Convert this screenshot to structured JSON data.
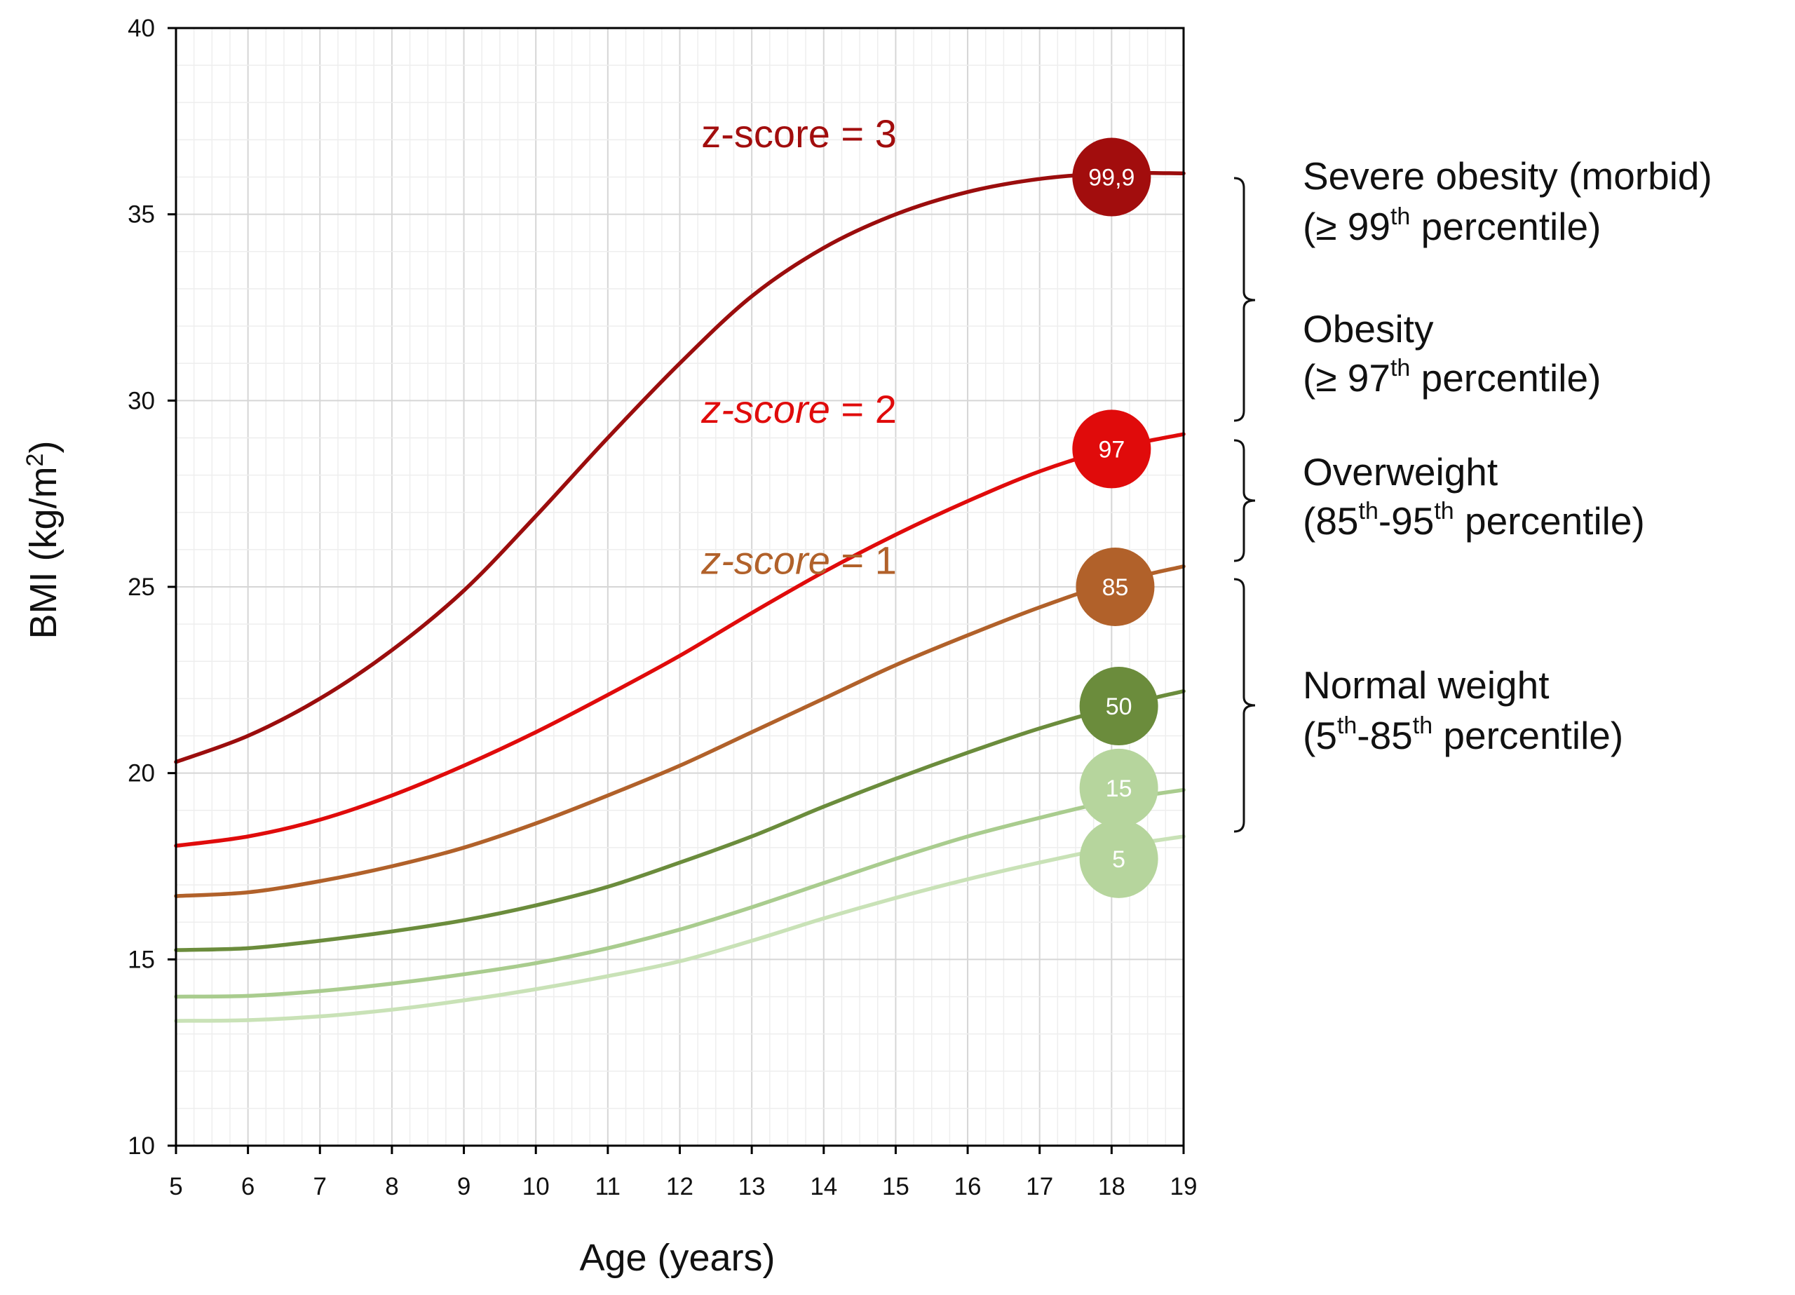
{
  "chart_data": {
    "type": "line",
    "xlabel": "Age (years)",
    "ylabel": "BMI (kg/m²)",
    "ylabel_parts": [
      "BMI (kg/m",
      "2",
      ")"
    ],
    "xlim": [
      5,
      19
    ],
    "ylim": [
      10,
      40
    ],
    "x_ticks": [
      "5",
      "6",
      "7",
      "8",
      "9",
      "10",
      "11",
      "12",
      "13",
      "14",
      "15",
      "16",
      "17",
      "18",
      "19"
    ],
    "y_ticks": [
      "10",
      "15",
      "20",
      "25",
      "30",
      "35",
      "40"
    ],
    "grid": true,
    "x": [
      5,
      6,
      7,
      8,
      9,
      10,
      11,
      12,
      13,
      14,
      15,
      16,
      17,
      18,
      19
    ],
    "series": [
      {
        "name": "99,9",
        "color": "#9b0d0d",
        "values": [
          20.3,
          21.0,
          22.0,
          23.3,
          24.9,
          26.9,
          29.0,
          31.0,
          32.8,
          34.1,
          35.0,
          35.6,
          35.95,
          36.1,
          36.1
        ]
      },
      {
        "name": "97",
        "color": "#e00b0b",
        "values": [
          18.05,
          18.3,
          18.75,
          19.4,
          20.2,
          21.1,
          22.1,
          23.15,
          24.3,
          25.4,
          26.4,
          27.3,
          28.1,
          28.7,
          29.1
        ]
      },
      {
        "name": "85",
        "color": "#b1612a",
        "values": [
          16.7,
          16.8,
          17.1,
          17.5,
          18.0,
          18.65,
          19.4,
          20.2,
          21.1,
          22.0,
          22.9,
          23.7,
          24.45,
          25.1,
          25.55
        ]
      },
      {
        "name": "50",
        "color": "#6b8c3c",
        "values": [
          15.25,
          15.3,
          15.5,
          15.75,
          16.05,
          16.45,
          16.95,
          17.6,
          18.3,
          19.1,
          19.85,
          20.55,
          21.2,
          21.75,
          22.2
        ]
      },
      {
        "name": "15",
        "color": "#a9cc8e",
        "values": [
          14.0,
          14.02,
          14.15,
          14.35,
          14.6,
          14.9,
          15.3,
          15.8,
          16.4,
          17.05,
          17.7,
          18.3,
          18.8,
          19.25,
          19.55
        ]
      },
      {
        "name": "5",
        "color": "#c9e2b7",
        "values": [
          13.35,
          13.37,
          13.47,
          13.65,
          13.9,
          14.2,
          14.55,
          14.95,
          15.5,
          16.1,
          16.65,
          17.15,
          17.6,
          18.0,
          18.3
        ]
      }
    ],
    "badges": [
      {
        "text": "99,9",
        "color": "#a20d0d",
        "x": 18.0,
        "y": 36.0
      },
      {
        "text": "97",
        "color": "#e00b0b",
        "x": 18.0,
        "y": 28.7
      },
      {
        "text": "85",
        "color": "#b1612a",
        "x": 18.05,
        "y": 25.0
      },
      {
        "text": "50",
        "color": "#6b8c3c",
        "x": 18.1,
        "y": 21.8
      },
      {
        "text": "15",
        "color": "#b6d59d",
        "x": 18.1,
        "y": 19.6
      },
      {
        "text": "5",
        "color": "#b6d59d",
        "x": 18.1,
        "y": 17.7
      }
    ],
    "annotations": [
      {
        "italic": false,
        "text": "z-score = 3",
        "color": "#a20d0d",
        "x": 12.3,
        "y": 36.8
      },
      {
        "italic": true,
        "text": "z-score",
        "rest": " = 2",
        "color": "#e00b0b",
        "x": 12.3,
        "y": 29.4
      },
      {
        "italic": true,
        "text": "z-score",
        "rest": " = 1",
        "color": "#b1612a",
        "x": 12.3,
        "y": 25.35
      }
    ],
    "categories": [
      {
        "lines": [
          [
            [
              "Severe obesity (morbid)",
              false
            ]
          ],
          [
            [
              "(≥ 99",
              false
            ],
            [
              "th",
              true
            ],
            [
              " percentile)",
              false
            ]
          ]
        ]
      },
      {
        "lines": [
          [
            [
              "Obesity",
              false
            ]
          ],
          [
            [
              "(≥ 97",
              false
            ],
            [
              "th",
              true
            ],
            [
              " percentile)",
              false
            ]
          ]
        ]
      },
      {
        "lines": [
          [
            [
              "Overweight",
              false
            ]
          ],
          [
            [
              "(85",
              false
            ],
            [
              "th",
              true
            ],
            [
              "-95",
              false
            ],
            [
              "th",
              true
            ],
            [
              " percentile)",
              false
            ]
          ]
        ]
      },
      {
        "lines": [
          [
            [
              "Normal weight",
              false
            ]
          ],
          [
            [
              "(5",
              false
            ],
            [
              "th",
              true
            ],
            [
              "-85",
              false
            ],
            [
              "th",
              true
            ],
            [
              " percentile)",
              false
            ]
          ]
        ]
      }
    ]
  }
}
